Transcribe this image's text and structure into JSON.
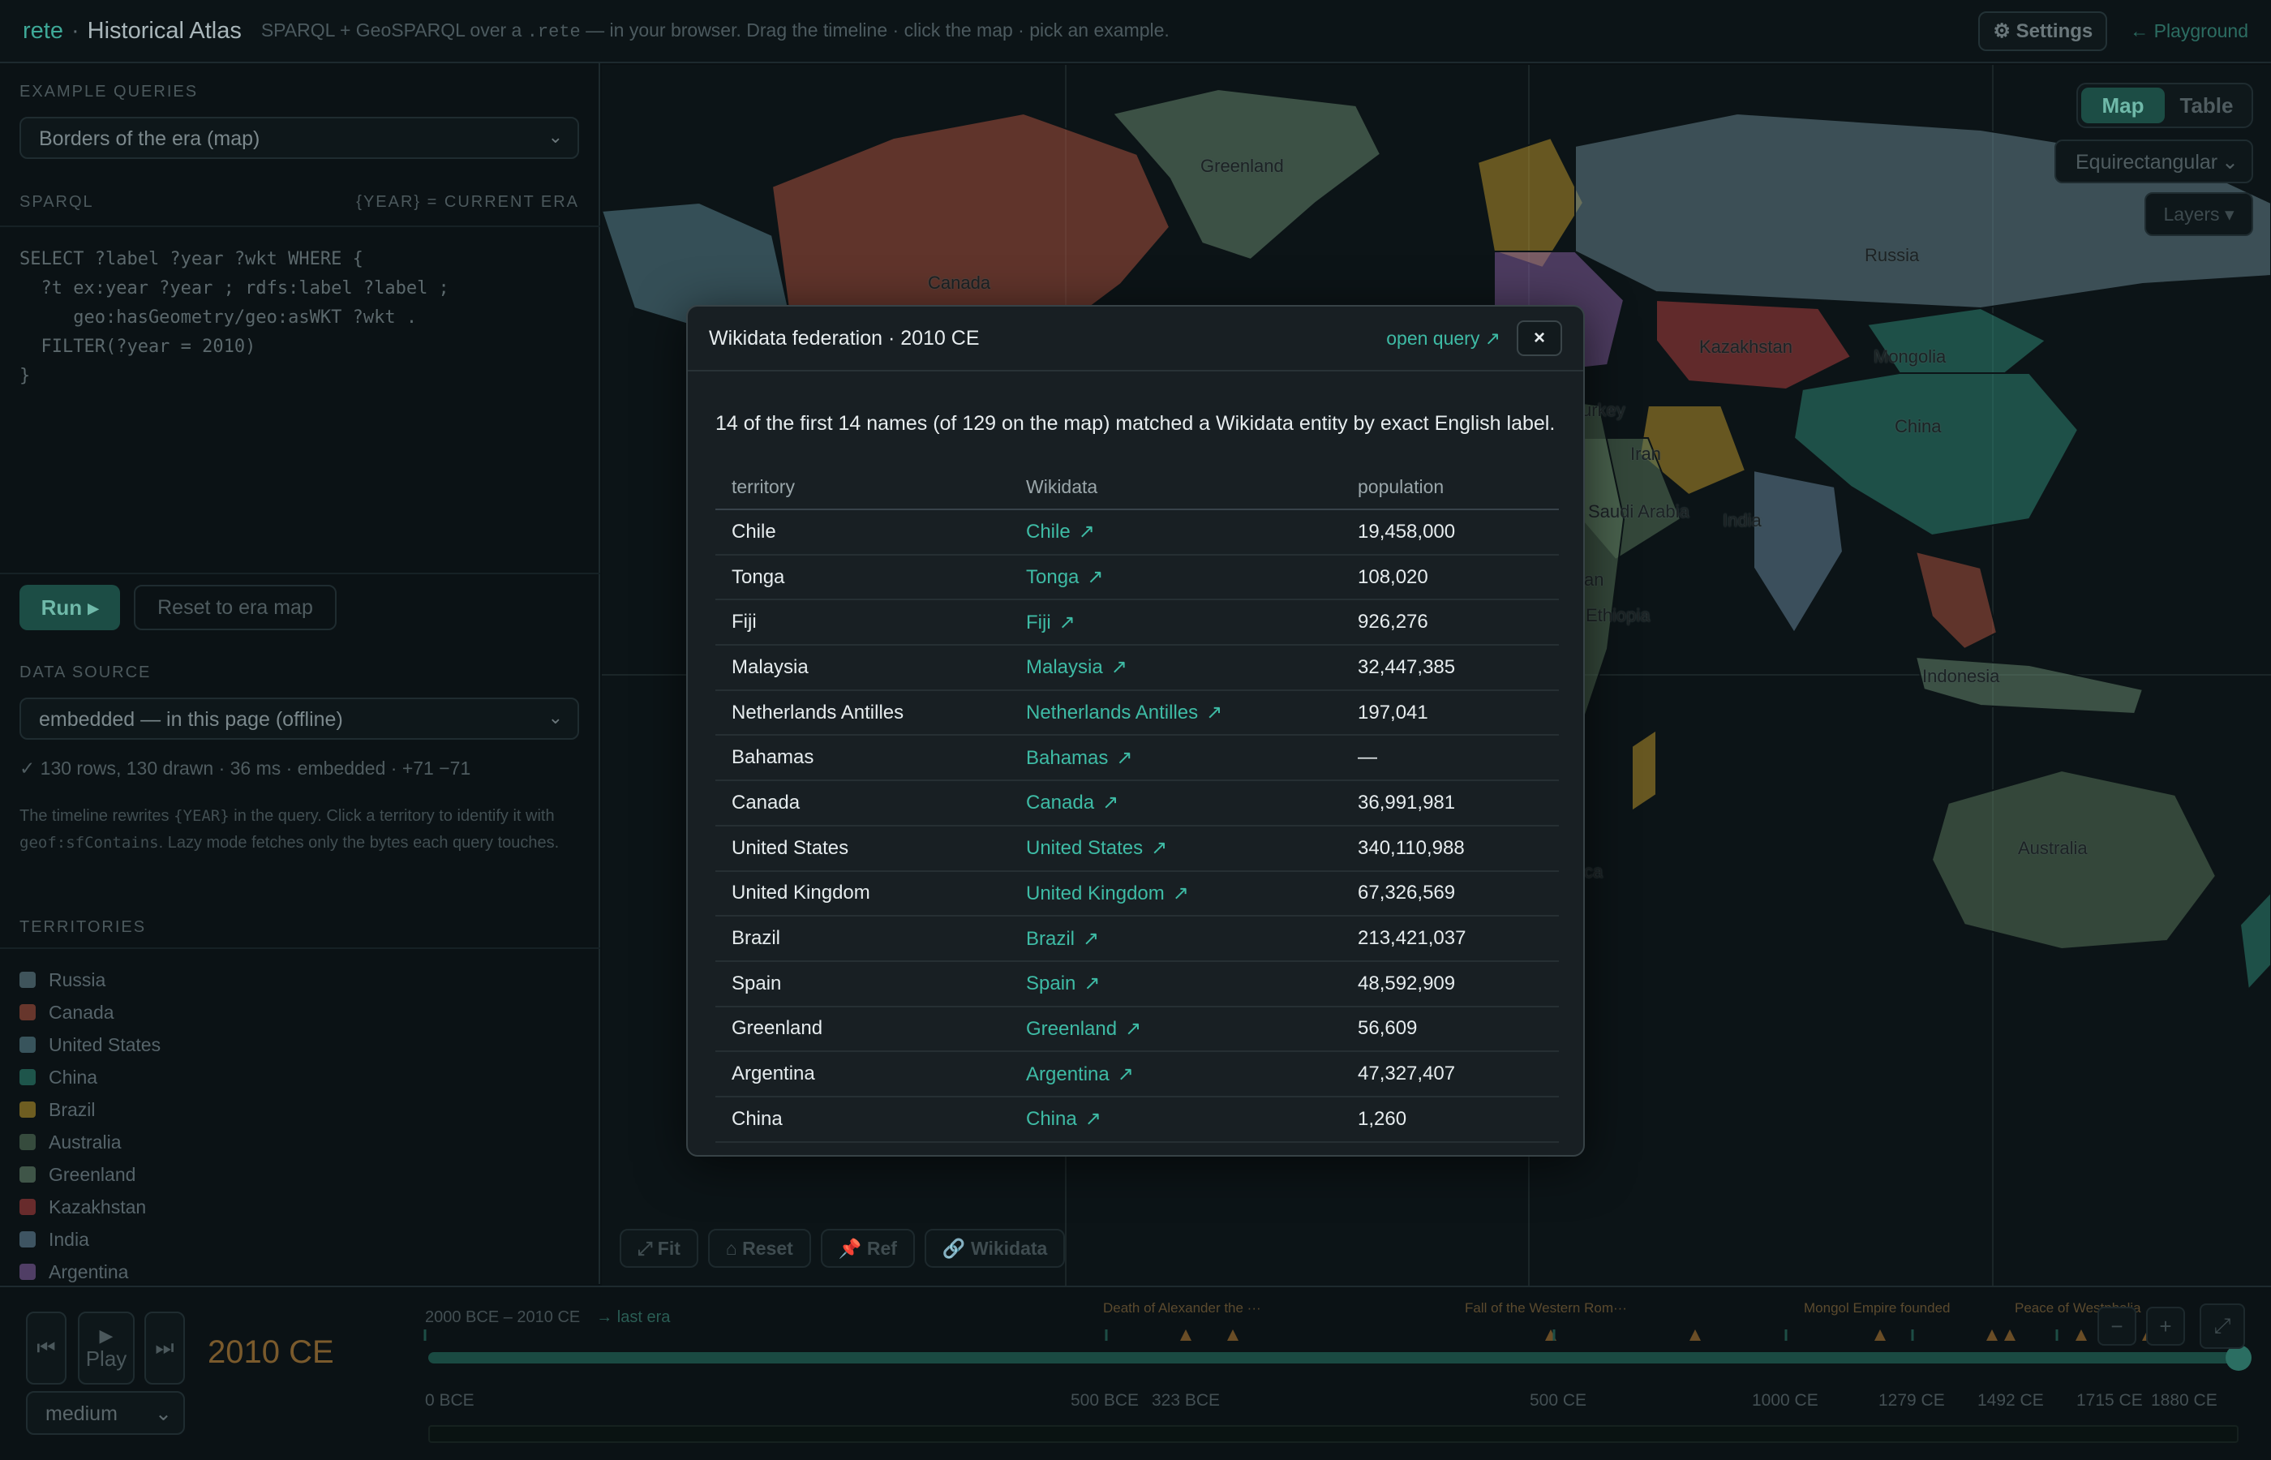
{
  "topbar": {
    "brand_name": "rete",
    "separator": "·",
    "app_title": "Historical Atlas",
    "tagline_before": "SPARQL + GeoSPARQL over a",
    "tagline_code": ".rete",
    "tagline_after": "— in your browser. Drag the timeline · click the map · pick an example.",
    "settings_label": "⚙ Settings",
    "playground_label": "← Playground"
  },
  "sidebar": {
    "example_queries_label": "EXAMPLE QUERIES",
    "example_query_selected": "Borders of the era (map)",
    "sparql_label": "SPARQL",
    "sparql_hint": "{YEAR} = CURRENT ERA",
    "sparql_code": "SELECT ?label ?year ?wkt WHERE {\n  ?t ex:year ?year ; rdfs:label ?label ;\n     geo:hasGeometry/geo:asWKT ?wkt .\n  FILTER(?year = 2010)\n}",
    "run_label": "Run ▸",
    "reset_label": "Reset to era map",
    "data_source_label": "DATA SOURCE",
    "data_source_selected": "embedded — in this page (offline)",
    "status": "✓ 130 rows, 130 drawn · 36 ms · embedded · +71 −71",
    "help_1": "The timeline rewrites ",
    "help_code_1": "{YEAR}",
    "help_2": " in the query. Click a territory to identify it with ",
    "help_code_2": "geof:sfContains",
    "help_3": ". Lazy mode fetches only the bytes each query touches.",
    "territories_label": "TERRITORIES",
    "territories": [
      {
        "name": "Russia",
        "color": "#6b8a96"
      },
      {
        "name": "Canada",
        "color": "#b4533f"
      },
      {
        "name": "United States",
        "color": "#5e8a98"
      },
      {
        "name": "China",
        "color": "#2f8c79"
      },
      {
        "name": "Brazil",
        "color": "#c19a2b"
      },
      {
        "name": "Australia",
        "color": "#5b7a5e"
      },
      {
        "name": "Greenland",
        "color": "#6b8d73"
      },
      {
        "name": "Kazakhstan",
        "color": "#b6403f"
      },
      {
        "name": "India",
        "color": "#6a8aa2"
      },
      {
        "name": "Argentina",
        "color": "#8b62a7"
      }
    ]
  },
  "map": {
    "view_map": "Map",
    "view_table": "Table",
    "projection": "Equirectangular",
    "layers": "Layers ▾",
    "labels": [
      "Greenland",
      "Canada",
      "Russia",
      "Kazakhstan",
      "Mongolia",
      "China",
      "Iran",
      "urkey",
      "Saudi Arabia",
      "India",
      "Ethiopia",
      "an",
      "Indonesia",
      "Australia",
      "ca"
    ],
    "tools": [
      "⤢ Fit",
      "⌂ Reset",
      "📌 Ref",
      "🔗 Wikidata"
    ]
  },
  "timeline": {
    "first_icon": "⏮",
    "play_icon": "▶",
    "play_label": "Play",
    "last_icon": "⏭",
    "current_year": "2010 CE",
    "speed": "medium",
    "range": "2000 BCE – 2010 CE",
    "last_era": "→ last era",
    "position": 1.0,
    "events": [
      "Death of Alexander the ···",
      "Fall of the Western Rom···",
      "Mongol Empire founded",
      "Peace of Westphalia"
    ],
    "ticks": [
      "0 BCE",
      "500 BCE",
      "323 BCE",
      "500 CE",
      "1000 CE",
      "1279 CE",
      "1492 CE",
      "1715 CE",
      "1880 CE"
    ],
    "zoom_out": "−",
    "zoom_in": "+",
    "expand": "⤢"
  },
  "modal": {
    "title": "Wikidata federation · 2010 CE",
    "open_query": "open query ↗",
    "close": "×",
    "summary": "14 of the first 14 names (of 129 on the map) matched a Wikidata entity by exact English label.",
    "columns": [
      "territory",
      "Wikidata",
      "population"
    ],
    "link_arrow": "↗",
    "rows": [
      {
        "territory": "Chile",
        "wikidata": "Chile",
        "population": "19,458,000"
      },
      {
        "territory": "Tonga",
        "wikidata": "Tonga",
        "population": "108,020"
      },
      {
        "territory": "Fiji",
        "wikidata": "Fiji",
        "population": "926,276"
      },
      {
        "territory": "Malaysia",
        "wikidata": "Malaysia",
        "population": "32,447,385"
      },
      {
        "territory": "Netherlands Antilles",
        "wikidata": "Netherlands Antilles",
        "population": "197,041"
      },
      {
        "territory": "Bahamas",
        "wikidata": "Bahamas",
        "population": "—"
      },
      {
        "territory": "Canada",
        "wikidata": "Canada",
        "population": "36,991,981"
      },
      {
        "territory": "United States",
        "wikidata": "United States",
        "population": "340,110,988"
      },
      {
        "territory": "United Kingdom",
        "wikidata": "United Kingdom",
        "population": "67,326,569"
      },
      {
        "territory": "Brazil",
        "wikidata": "Brazil",
        "population": "213,421,037"
      },
      {
        "territory": "Spain",
        "wikidata": "Spain",
        "population": "48,592,909"
      },
      {
        "territory": "Greenland",
        "wikidata": "Greenland",
        "population": "56,609"
      },
      {
        "territory": "Argentina",
        "wikidata": "Argentina",
        "population": "47,327,407"
      },
      {
        "territory": "China",
        "wikidata": "China",
        "population": "1,260"
      }
    ]
  }
}
